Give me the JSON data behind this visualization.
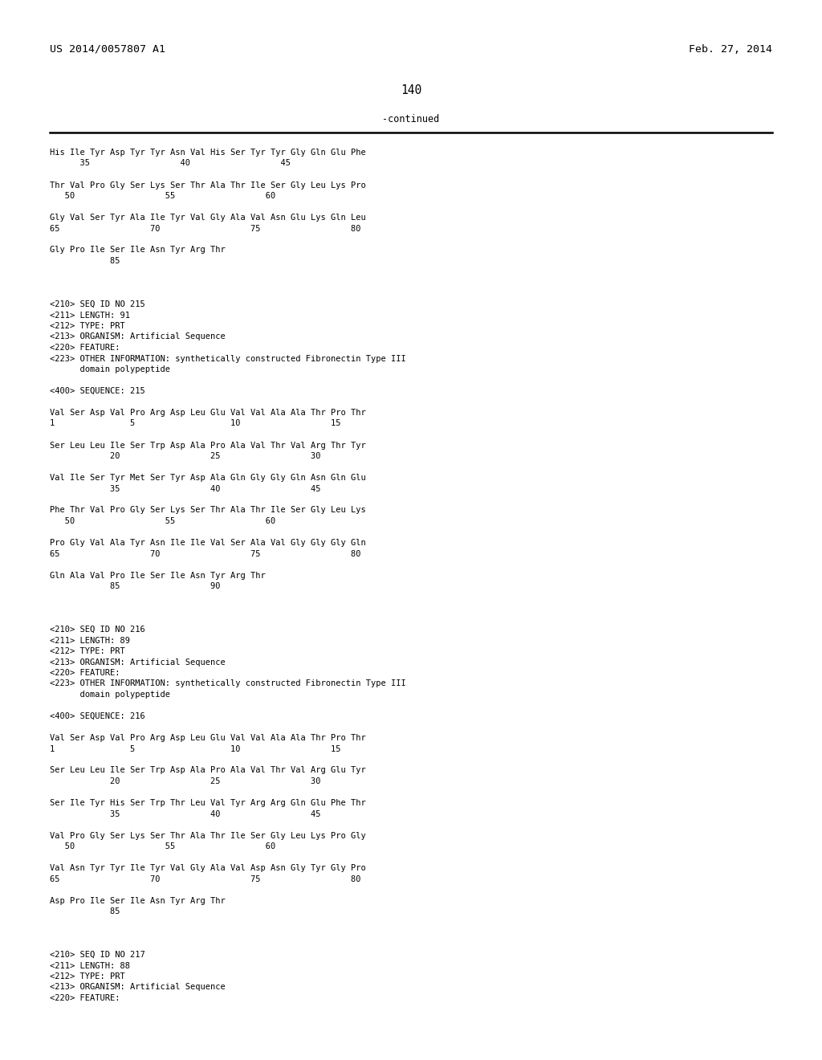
{
  "left_header": "US 2014/0057807 A1",
  "right_header": "Feb. 27, 2014",
  "page_number": "140",
  "continued_label": "-continued",
  "background_color": "#ffffff",
  "text_color": "#000000",
  "font_size": 7.5,
  "header_font_size": 9.5,
  "page_num_font_size": 10.5,
  "content_lines": [
    "His Ile Tyr Asp Tyr Tyr Asn Val His Ser Tyr Tyr Gly Gln Glu Phe",
    "      35                  40                  45",
    "",
    "Thr Val Pro Gly Ser Lys Ser Thr Ala Thr Ile Ser Gly Leu Lys Pro",
    "   50                  55                  60",
    "",
    "Gly Val Ser Tyr Ala Ile Tyr Val Gly Ala Val Asn Glu Lys Gln Leu",
    "65                  70                  75                  80",
    "",
    "Gly Pro Ile Ser Ile Asn Tyr Arg Thr",
    "            85",
    "",
    "",
    "",
    "<210> SEQ ID NO 215",
    "<211> LENGTH: 91",
    "<212> TYPE: PRT",
    "<213> ORGANISM: Artificial Sequence",
    "<220> FEATURE:",
    "<223> OTHER INFORMATION: synthetically constructed Fibronectin Type III",
    "      domain polypeptide",
    "",
    "<400> SEQUENCE: 215",
    "",
    "Val Ser Asp Val Pro Arg Asp Leu Glu Val Val Ala Ala Thr Pro Thr",
    "1               5                   10                  15",
    "",
    "Ser Leu Leu Ile Ser Trp Asp Ala Pro Ala Val Thr Val Arg Thr Tyr",
    "            20                  25                  30",
    "",
    "Val Ile Ser Tyr Met Ser Tyr Asp Ala Gln Gly Gly Gln Asn Gln Glu",
    "            35                  40                  45",
    "",
    "Phe Thr Val Pro Gly Ser Lys Ser Thr Ala Thr Ile Ser Gly Leu Lys",
    "   50                  55                  60",
    "",
    "Pro Gly Val Ala Tyr Asn Ile Ile Val Ser Ala Val Gly Gly Gly Gln",
    "65                  70                  75                  80",
    "",
    "Gln Ala Val Pro Ile Ser Ile Asn Tyr Arg Thr",
    "            85                  90",
    "",
    "",
    "",
    "<210> SEQ ID NO 216",
    "<211> LENGTH: 89",
    "<212> TYPE: PRT",
    "<213> ORGANISM: Artificial Sequence",
    "<220> FEATURE:",
    "<223> OTHER INFORMATION: synthetically constructed Fibronectin Type III",
    "      domain polypeptide",
    "",
    "<400> SEQUENCE: 216",
    "",
    "Val Ser Asp Val Pro Arg Asp Leu Glu Val Val Ala Ala Thr Pro Thr",
    "1               5                   10                  15",
    "",
    "Ser Leu Leu Ile Ser Trp Asp Ala Pro Ala Val Thr Val Arg Glu Tyr",
    "            20                  25                  30",
    "",
    "Ser Ile Tyr His Ser Trp Thr Leu Val Tyr Arg Arg Gln Glu Phe Thr",
    "            35                  40                  45",
    "",
    "Val Pro Gly Ser Lys Ser Thr Ala Thr Ile Ser Gly Leu Lys Pro Gly",
    "   50                  55                  60",
    "",
    "Val Asn Tyr Tyr Ile Tyr Val Gly Ala Val Asp Asn Gly Tyr Gly Pro",
    "65                  70                  75                  80",
    "",
    "Asp Pro Ile Ser Ile Asn Tyr Arg Thr",
    "            85",
    "",
    "",
    "",
    "<210> SEQ ID NO 217",
    "<211> LENGTH: 88",
    "<212> TYPE: PRT",
    "<213> ORGANISM: Artificial Sequence",
    "<220> FEATURE:"
  ]
}
